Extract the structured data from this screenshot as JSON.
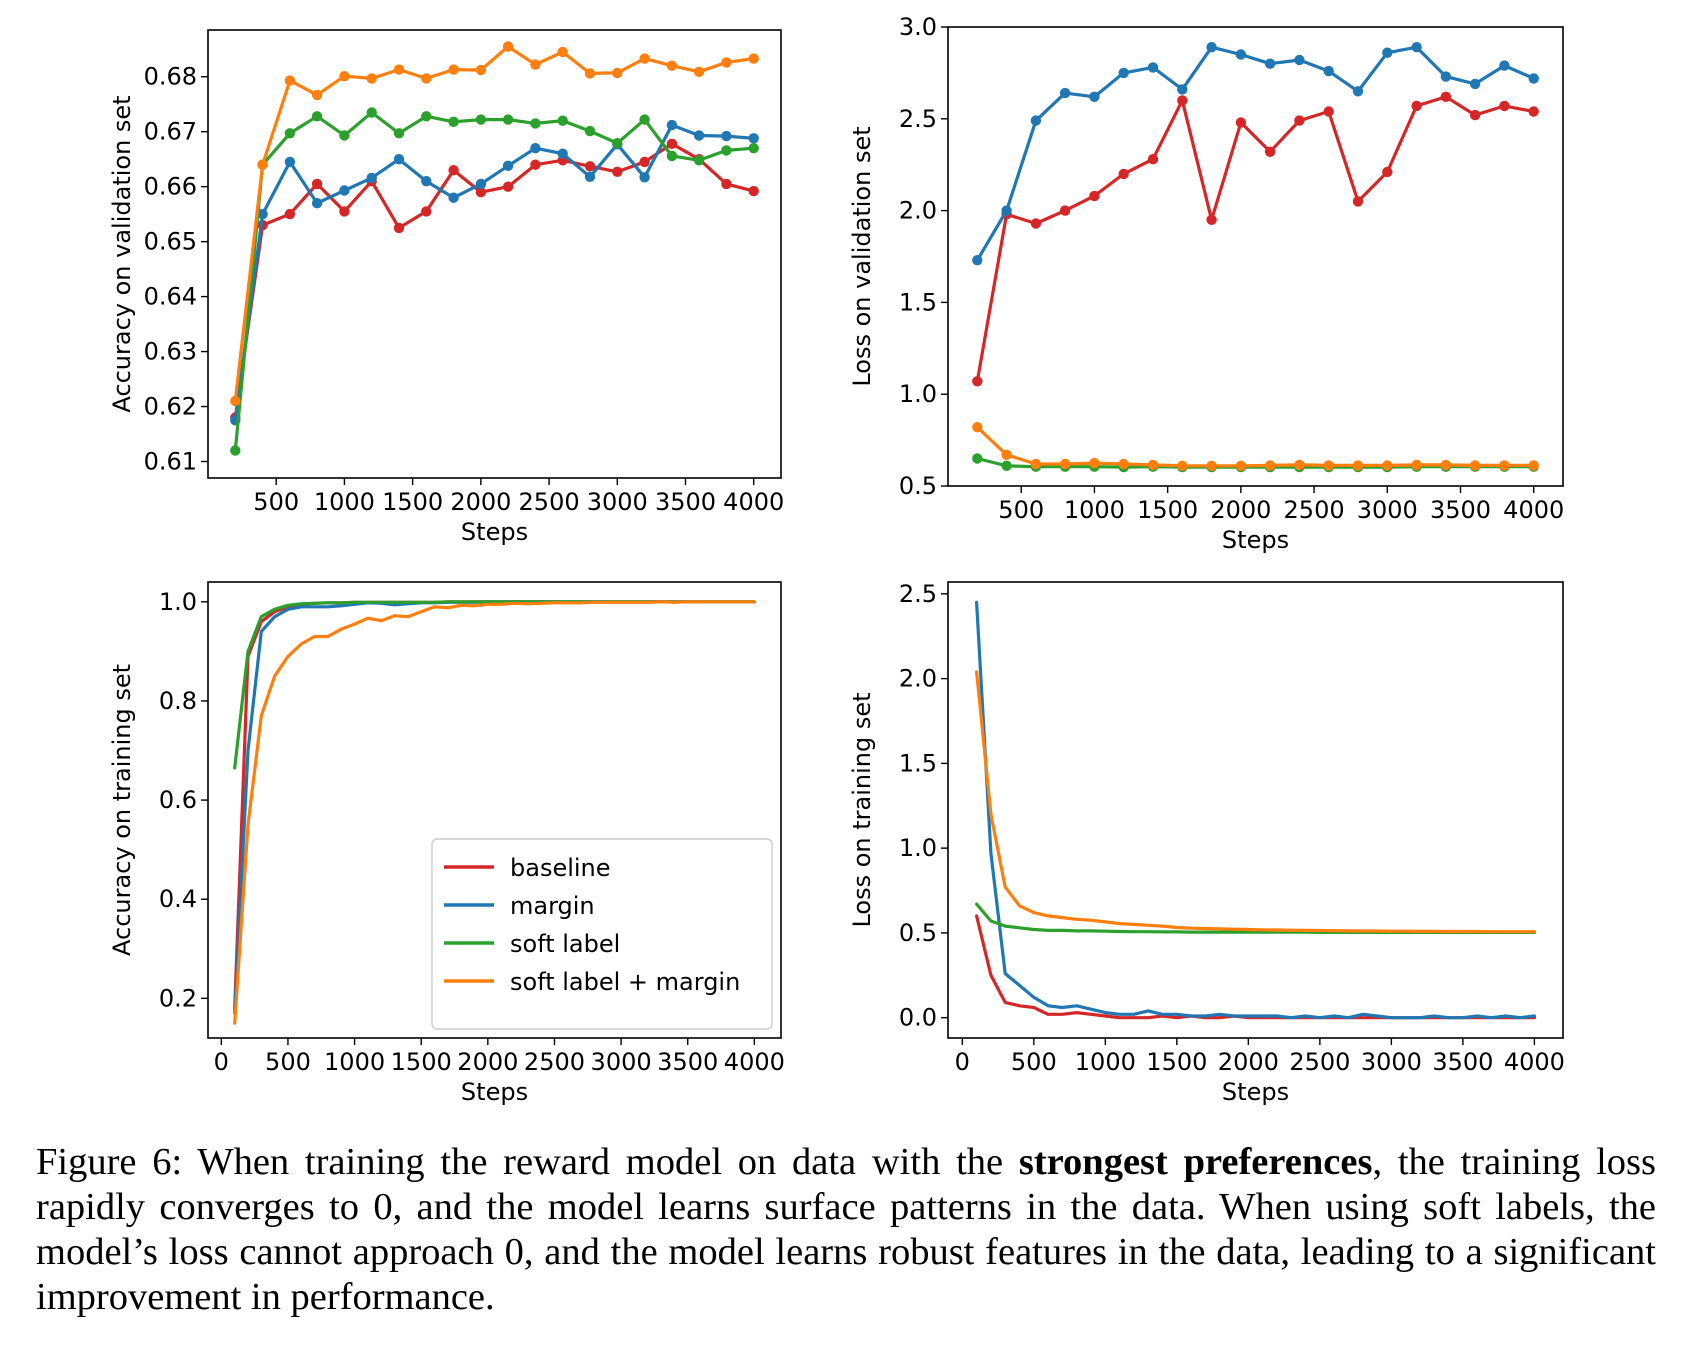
{
  "colors": {
    "baseline": "#d62728",
    "margin": "#1f77b4",
    "soft_label": "#2ca02c",
    "soft_label_margin": "#ff7f0e"
  },
  "legend": {
    "location": "lower right of bottom-left panel",
    "entries": [
      "baseline",
      "margin",
      "soft label",
      "soft label + margin"
    ]
  },
  "chart_data": [
    {
      "type": "line",
      "markers": true,
      "xlabel": "Steps",
      "ylabel": "Accuracy on validation set",
      "xlim": [
        0,
        4200
      ],
      "ylim": [
        0.607,
        0.6885
      ],
      "xticks": [
        500,
        1000,
        1500,
        2000,
        2500,
        3000,
        3500,
        4000
      ],
      "yticks": [
        0.61,
        0.62,
        0.63,
        0.64,
        0.65,
        0.66,
        0.67,
        0.68
      ],
      "x": [
        200,
        400,
        600,
        800,
        1000,
        1200,
        1400,
        1600,
        1800,
        2000,
        2200,
        2400,
        2600,
        2800,
        3000,
        3200,
        3400,
        3600,
        3800,
        4000
      ],
      "series": [
        {
          "name": "baseline",
          "color": "#d62728",
          "values": [
            0.618,
            0.653,
            0.655,
            0.6605,
            0.6555,
            0.661,
            0.6525,
            0.6555,
            0.663,
            0.659,
            0.66,
            0.664,
            0.6648,
            0.6637,
            0.6627,
            0.6645,
            0.6678,
            0.665,
            0.6605,
            0.6592
          ]
        },
        {
          "name": "margin",
          "color": "#1f77b4",
          "values": [
            0.6175,
            0.655,
            0.6645,
            0.657,
            0.6593,
            0.6616,
            0.665,
            0.661,
            0.658,
            0.6605,
            0.6638,
            0.667,
            0.666,
            0.6618,
            0.6677,
            0.6617,
            0.6712,
            0.6693,
            0.6692,
            0.6688
          ]
        },
        {
          "name": "soft label",
          "color": "#2ca02c",
          "values": [
            0.612,
            0.664,
            0.6697,
            0.6728,
            0.6693,
            0.6735,
            0.6697,
            0.6728,
            0.6718,
            0.6722,
            0.6722,
            0.6715,
            0.672,
            0.6701,
            0.6679,
            0.6722,
            0.6656,
            0.6648,
            0.6666,
            0.667
          ]
        },
        {
          "name": "soft label + margin",
          "color": "#ff7f0e",
          "values": [
            0.621,
            0.664,
            0.6793,
            0.6767,
            0.6801,
            0.6797,
            0.6813,
            0.6797,
            0.6813,
            0.6812,
            0.6855,
            0.6822,
            0.6845,
            0.6806,
            0.6807,
            0.6833,
            0.682,
            0.6809,
            0.6826,
            0.6833
          ]
        }
      ]
    },
    {
      "type": "line",
      "markers": true,
      "xlabel": "Steps",
      "ylabel": "Loss on validation set",
      "xlim": [
        0,
        4200
      ],
      "ylim": [
        0.5,
        3.0
      ],
      "xticks": [
        500,
        1000,
        1500,
        2000,
        2500,
        3000,
        3500,
        4000
      ],
      "yticks": [
        0.5,
        1.0,
        1.5,
        2.0,
        2.5,
        3.0
      ],
      "x": [
        200,
        400,
        600,
        800,
        1000,
        1200,
        1400,
        1600,
        1800,
        2000,
        2200,
        2400,
        2600,
        2800,
        3000,
        3200,
        3400,
        3600,
        3800,
        4000
      ],
      "series": [
        {
          "name": "baseline",
          "color": "#d62728",
          "values": [
            1.07,
            1.98,
            1.93,
            2.0,
            2.08,
            2.2,
            2.28,
            2.6,
            1.95,
            2.48,
            2.32,
            2.49,
            2.54,
            2.05,
            2.21,
            2.57,
            2.62,
            2.52,
            2.57,
            2.54
          ]
        },
        {
          "name": "margin",
          "color": "#1f77b4",
          "values": [
            1.73,
            2.0,
            2.49,
            2.64,
            2.62,
            2.75,
            2.78,
            2.66,
            2.89,
            2.85,
            2.8,
            2.82,
            2.76,
            2.65,
            2.86,
            2.89,
            2.73,
            2.69,
            2.79,
            2.72
          ]
        },
        {
          "name": "soft label",
          "color": "#2ca02c",
          "values": [
            0.65,
            0.61,
            0.605,
            0.605,
            0.605,
            0.603,
            0.605,
            0.603,
            0.603,
            0.603,
            0.603,
            0.603,
            0.603,
            0.603,
            0.603,
            0.605,
            0.605,
            0.605,
            0.605,
            0.605
          ]
        },
        {
          "name": "soft label + margin",
          "color": "#ff7f0e",
          "values": [
            0.82,
            0.67,
            0.62,
            0.62,
            0.625,
            0.62,
            0.615,
            0.61,
            0.61,
            0.61,
            0.612,
            0.615,
            0.612,
            0.612,
            0.612,
            0.615,
            0.615,
            0.612,
            0.612,
            0.612
          ]
        }
      ]
    },
    {
      "type": "line",
      "markers": false,
      "xlabel": "Steps",
      "ylabel": "Accuracy on training set",
      "xlim": [
        -100,
        4200
      ],
      "ylim": [
        0.12,
        1.04
      ],
      "xticks": [
        0,
        500,
        1000,
        1500,
        2000,
        2500,
        3000,
        3500,
        4000
      ],
      "yticks": [
        0.2,
        0.4,
        0.6,
        0.8,
        1.0
      ],
      "x": [
        100,
        200,
        300,
        400,
        500,
        600,
        700,
        800,
        900,
        1000,
        1100,
        1200,
        1300,
        1400,
        1500,
        1600,
        1700,
        1800,
        1900,
        2000,
        2100,
        2200,
        2300,
        2400,
        2500,
        2600,
        2700,
        2800,
        2900,
        3000,
        3100,
        3200,
        3300,
        3400,
        3500,
        3600,
        3700,
        3800,
        3900,
        4000
      ],
      "series": [
        {
          "name": "baseline",
          "color": "#d62728",
          "values": [
            0.18,
            0.89,
            0.96,
            0.98,
            0.99,
            0.995,
            0.997,
            0.998,
            0.998,
            0.999,
            0.999,
            0.999,
            0.999,
            0.999,
            0.999,
            0.999,
            1.0,
            1.0,
            1.0,
            1.0,
            1.0,
            1.0,
            1.0,
            1.0,
            1.0,
            1.0,
            1.0,
            1.0,
            1.0,
            1.0,
            1.0,
            1.0,
            1.0,
            1.0,
            1.0,
            1.0,
            1.0,
            1.0,
            1.0,
            1.0
          ]
        },
        {
          "name": "margin",
          "color": "#1f77b4",
          "values": [
            0.17,
            0.7,
            0.94,
            0.97,
            0.985,
            0.99,
            0.99,
            0.99,
            0.992,
            0.995,
            0.998,
            0.997,
            0.994,
            0.996,
            0.998,
            0.998,
            0.999,
            0.999,
            0.999,
            1.0,
            1.0,
            1.0,
            1.0,
            1.0,
            1.0,
            1.0,
            1.0,
            1.0,
            1.0,
            1.0,
            1.0,
            1.0,
            1.0,
            1.0,
            1.0,
            1.0,
            1.0,
            1.0,
            1.0,
            1.0
          ]
        },
        {
          "name": "soft label",
          "color": "#2ca02c",
          "values": [
            0.665,
            0.9,
            0.97,
            0.985,
            0.993,
            0.996,
            0.997,
            0.998,
            0.998,
            0.999,
            0.999,
            0.999,
            0.999,
            0.999,
            0.999,
            0.999,
            1.0,
            1.0,
            1.0,
            1.0,
            1.0,
            1.0,
            1.0,
            1.0,
            1.0,
            1.0,
            1.0,
            1.0,
            1.0,
            1.0,
            1.0,
            1.0,
            1.0,
            1.0,
            1.0,
            1.0,
            1.0,
            1.0,
            1.0,
            1.0
          ]
        },
        {
          "name": "soft label + margin",
          "color": "#ff7f0e",
          "values": [
            0.15,
            0.55,
            0.77,
            0.85,
            0.89,
            0.915,
            0.93,
            0.93,
            0.945,
            0.955,
            0.967,
            0.962,
            0.972,
            0.97,
            0.98,
            0.99,
            0.988,
            0.993,
            0.992,
            0.995,
            0.995,
            0.997,
            0.996,
            0.997,
            0.998,
            0.998,
            0.998,
            0.999,
            0.999,
            0.999,
            0.999,
            0.999,
            1.0,
            0.999,
            1.0,
            1.0,
            1.0,
            1.0,
            1.0,
            1.0
          ]
        }
      ]
    },
    {
      "type": "line",
      "markers": false,
      "xlabel": "Steps",
      "ylabel": "Loss on training set",
      "xlim": [
        -100,
        4200
      ],
      "ylim": [
        -0.12,
        2.57
      ],
      "xticks": [
        0,
        500,
        1000,
        1500,
        2000,
        2500,
        3000,
        3500,
        4000
      ],
      "yticks": [
        0.0,
        0.5,
        1.0,
        1.5,
        2.0,
        2.5
      ],
      "x": [
        100,
        200,
        300,
        400,
        500,
        600,
        700,
        800,
        900,
        1000,
        1100,
        1200,
        1300,
        1400,
        1500,
        1600,
        1700,
        1800,
        1900,
        2000,
        2100,
        2200,
        2300,
        2400,
        2500,
        2600,
        2700,
        2800,
        2900,
        3000,
        3100,
        3200,
        3300,
        3400,
        3500,
        3600,
        3700,
        3800,
        3900,
        4000
      ],
      "series": [
        {
          "name": "baseline",
          "color": "#d62728",
          "values": [
            0.6,
            0.25,
            0.09,
            0.07,
            0.06,
            0.02,
            0.02,
            0.03,
            0.02,
            0.01,
            0.0,
            0.0,
            0.0,
            0.01,
            0.0,
            0.01,
            0.0,
            0.0,
            0.01,
            0.0,
            0.0,
            0.0,
            0.0,
            0.0,
            0.0,
            0.0,
            0.0,
            0.0,
            0.0,
            0.0,
            0.0,
            0.0,
            0.0,
            0.0,
            0.0,
            0.0,
            0.0,
            0.0,
            0.0,
            0.0
          ]
        },
        {
          "name": "margin",
          "color": "#1f77b4",
          "values": [
            2.45,
            0.97,
            0.26,
            0.19,
            0.12,
            0.07,
            0.06,
            0.07,
            0.05,
            0.03,
            0.02,
            0.02,
            0.04,
            0.02,
            0.02,
            0.01,
            0.01,
            0.02,
            0.01,
            0.01,
            0.01,
            0.01,
            0.0,
            0.01,
            0.0,
            0.01,
            0.0,
            0.02,
            0.01,
            0.0,
            0.0,
            0.0,
            0.01,
            0.0,
            0.0,
            0.01,
            0.0,
            0.01,
            0.0,
            0.01
          ]
        },
        {
          "name": "soft label",
          "color": "#2ca02c",
          "values": [
            0.67,
            0.57,
            0.54,
            0.53,
            0.52,
            0.515,
            0.515,
            0.512,
            0.512,
            0.51,
            0.508,
            0.507,
            0.507,
            0.506,
            0.506,
            0.505,
            0.505,
            0.505,
            0.505,
            0.505,
            0.504,
            0.504,
            0.504,
            0.504,
            0.503,
            0.503,
            0.503,
            0.503,
            0.503,
            0.503,
            0.503,
            0.503,
            0.503,
            0.503,
            0.503,
            0.503,
            0.503,
            0.503,
            0.503,
            0.503
          ]
        },
        {
          "name": "soft label + margin",
          "color": "#ff7f0e",
          "values": [
            2.04,
            1.2,
            0.77,
            0.66,
            0.62,
            0.6,
            0.59,
            0.58,
            0.575,
            0.565,
            0.555,
            0.55,
            0.545,
            0.54,
            0.532,
            0.528,
            0.526,
            0.524,
            0.522,
            0.52,
            0.518,
            0.517,
            0.516,
            0.515,
            0.514,
            0.513,
            0.512,
            0.511,
            0.511,
            0.51,
            0.51,
            0.509,
            0.509,
            0.508,
            0.508,
            0.508,
            0.507,
            0.507,
            0.507,
            0.507
          ]
        }
      ]
    }
  ],
  "caption": {
    "prefix": "Figure 6: When training the reward model on data with the ",
    "bold": "strongest preferences",
    "suffix": ", the training loss rapidly converges to 0, and the model learns surface patterns in the data. When using soft labels, the model’s loss cannot approach 0, and the model learns robust features in the data, leading to a significant improvement in performance."
  }
}
